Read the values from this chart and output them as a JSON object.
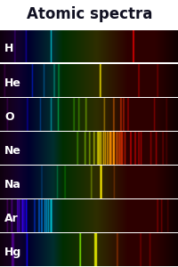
{
  "title": "Atomic spectra",
  "title_bg": "#dce6f0",
  "title_fontsize": 12,
  "title_color": "#111122",
  "fig_bg": "#ffffff",
  "elements": [
    "H",
    "He",
    "O",
    "Ne",
    "Na",
    "Ar",
    "Hg"
  ],
  "label_color": "#ffffff",
  "label_fontsize": 9,
  "wavelength_min": 380,
  "wavelength_max": 750,
  "sep_color": "#ffffff",
  "spectral_lines": {
    "H": [
      {
        "wl": 410.2,
        "intensity": 0.35
      },
      {
        "wl": 434.0,
        "intensity": 0.45
      },
      {
        "wl": 486.1,
        "intensity": 0.65
      },
      {
        "wl": 656.3,
        "intensity": 1.0
      }
    ],
    "He": [
      {
        "wl": 388.9,
        "intensity": 0.4
      },
      {
        "wl": 447.1,
        "intensity": 0.55
      },
      {
        "wl": 471.3,
        "intensity": 0.35
      },
      {
        "wl": 492.2,
        "intensity": 0.35
      },
      {
        "wl": 501.6,
        "intensity": 0.4
      },
      {
        "wl": 587.6,
        "intensity": 1.0
      },
      {
        "wl": 667.8,
        "intensity": 0.45
      },
      {
        "wl": 706.5,
        "intensity": 0.35
      }
    ],
    "O": [
      {
        "wl": 394.7,
        "intensity": 0.35
      },
      {
        "wl": 436.8,
        "intensity": 0.45
      },
      {
        "wl": 463.9,
        "intensity": 0.35
      },
      {
        "wl": 486.0,
        "intensity": 0.45
      },
      {
        "wl": 500.7,
        "intensity": 0.45
      },
      {
        "wl": 533.1,
        "intensity": 0.35
      },
      {
        "wl": 543.6,
        "intensity": 0.35
      },
      {
        "wl": 557.7,
        "intensity": 0.45
      },
      {
        "wl": 595.8,
        "intensity": 0.45
      },
      {
        "wl": 615.7,
        "intensity": 0.55
      },
      {
        "wl": 630.0,
        "intensity": 0.65
      },
      {
        "wl": 636.4,
        "intensity": 0.55
      },
      {
        "wl": 645.4,
        "intensity": 0.45
      },
      {
        "wl": 700.2,
        "intensity": 0.35
      },
      {
        "wl": 725.4,
        "intensity": 0.3
      }
    ],
    "Ne": [
      {
        "wl": 540.1,
        "intensity": 0.4
      },
      {
        "wl": 556.3,
        "intensity": 0.5
      },
      {
        "wl": 565.7,
        "intensity": 0.5
      },
      {
        "wl": 574.8,
        "intensity": 0.6
      },
      {
        "wl": 582.0,
        "intensity": 0.65
      },
      {
        "wl": 585.2,
        "intensity": 0.75
      },
      {
        "wl": 588.2,
        "intensity": 0.85
      },
      {
        "wl": 594.5,
        "intensity": 0.75
      },
      {
        "wl": 597.6,
        "intensity": 0.75
      },
      {
        "wl": 603.0,
        "intensity": 0.85
      },
      {
        "wl": 607.4,
        "intensity": 0.95
      },
      {
        "wl": 609.6,
        "intensity": 0.85
      },
      {
        "wl": 614.3,
        "intensity": 0.95
      },
      {
        "wl": 616.4,
        "intensity": 1.0
      },
      {
        "wl": 621.7,
        "intensity": 0.9
      },
      {
        "wl": 626.6,
        "intensity": 0.8
      },
      {
        "wl": 630.5,
        "intensity": 0.7
      },
      {
        "wl": 633.4,
        "intensity": 0.65
      },
      {
        "wl": 638.3,
        "intensity": 0.6
      },
      {
        "wl": 650.6,
        "intensity": 0.7
      },
      {
        "wl": 659.9,
        "intensity": 0.6
      },
      {
        "wl": 667.8,
        "intensity": 0.5
      },
      {
        "wl": 671.7,
        "intensity": 0.5
      },
      {
        "wl": 692.9,
        "intensity": 0.4
      },
      {
        "wl": 703.2,
        "intensity": 0.5
      },
      {
        "wl": 717.4,
        "intensity": 0.4
      },
      {
        "wl": 724.5,
        "intensity": 0.3
      }
    ],
    "Na": [
      {
        "wl": 466.5,
        "intensity": 0.25
      },
      {
        "wl": 498.3,
        "intensity": 0.25
      },
      {
        "wl": 514.9,
        "intensity": 0.25
      },
      {
        "wl": 568.8,
        "intensity": 0.35
      },
      {
        "wl": 589.0,
        "intensity": 1.0
      },
      {
        "wl": 589.6,
        "intensity": 1.0
      },
      {
        "wl": 616.1,
        "intensity": 0.25
      }
    ],
    "Ar": [
      {
        "wl": 394.9,
        "intensity": 0.5
      },
      {
        "wl": 404.4,
        "intensity": 0.6
      },
      {
        "wl": 415.9,
        "intensity": 0.7
      },
      {
        "wl": 419.8,
        "intensity": 0.6
      },
      {
        "wl": 425.9,
        "intensity": 0.6
      },
      {
        "wl": 427.2,
        "intensity": 0.6
      },
      {
        "wl": 430.0,
        "intensity": 0.5
      },
      {
        "wl": 433.4,
        "intensity": 0.5
      },
      {
        "wl": 434.5,
        "intensity": 0.5
      },
      {
        "wl": 451.1,
        "intensity": 0.6
      },
      {
        "wl": 460.9,
        "intensity": 0.7
      },
      {
        "wl": 465.8,
        "intensity": 0.8
      },
      {
        "wl": 472.7,
        "intensity": 0.7
      },
      {
        "wl": 476.5,
        "intensity": 0.6
      },
      {
        "wl": 480.6,
        "intensity": 0.6
      },
      {
        "wl": 484.8,
        "intensity": 0.6
      },
      {
        "wl": 487.0,
        "intensity": 0.5
      },
      {
        "wl": 706.7,
        "intensity": 0.4
      },
      {
        "wl": 714.7,
        "intensity": 0.4
      },
      {
        "wl": 727.3,
        "intensity": 0.3
      }
    ],
    "Hg": [
      {
        "wl": 404.7,
        "intensity": 0.7
      },
      {
        "wl": 407.8,
        "intensity": 0.5
      },
      {
        "wl": 435.8,
        "intensity": 0.85
      },
      {
        "wl": 546.1,
        "intensity": 0.95
      },
      {
        "wl": 576.9,
        "intensity": 0.85
      },
      {
        "wl": 579.1,
        "intensity": 0.85
      },
      {
        "wl": 623.4,
        "intensity": 0.4
      },
      {
        "wl": 671.6,
        "intensity": 0.3
      },
      {
        "wl": 690.7,
        "intensity": 0.3
      }
    ]
  }
}
